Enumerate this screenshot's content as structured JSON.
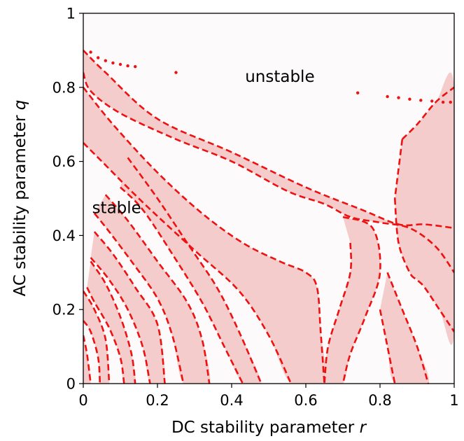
{
  "chart_data": {
    "type": "area",
    "title": "",
    "xlabel": "DC stability parameter r",
    "ylabel": "AC stability parameter q",
    "xlim": [
      0,
      1
    ],
    "ylim": [
      0,
      1
    ],
    "xticks": [
      0,
      0.2,
      0.4,
      0.6,
      0.8,
      1
    ],
    "xtick_labels": [
      "0",
      "0.2",
      "0.4",
      "0.6",
      "0.8",
      "1"
    ],
    "yticks": [
      0,
      0.2,
      0.4,
      0.6,
      0.8,
      1
    ],
    "ytick_labels": [
      "0",
      "0.2",
      "0.4",
      "0.6",
      "0.8",
      "1"
    ],
    "grid": false,
    "annotations": [
      {
        "text": "unstable",
        "x": 0.53,
        "y": 0.83
      },
      {
        "text": "stable",
        "x": 0.09,
        "y": 0.475
      }
    ],
    "colors": {
      "stable_region": "#f5cccc",
      "unstable_region": "#fcfafa",
      "boundary": "#ee1111"
    },
    "regions": [
      [
        [
          0,
          0.9
        ],
        [
          0.06,
          0.84
        ],
        [
          0.2,
          0.715
        ],
        [
          0.4,
          0.625
        ],
        [
          0.6,
          0.53
        ],
        [
          0.75,
          0.47
        ],
        [
          0.85,
          0.43
        ],
        [
          0.92,
          0.43
        ],
        [
          1,
          0.42
        ],
        [
          1,
          0.3
        ],
        [
          0.95,
          0.37
        ],
        [
          0.88,
          0.42
        ],
        [
          0.8,
          0.435
        ],
        [
          0.72,
          0.45
        ],
        [
          0.65,
          0.485
        ],
        [
          0.55,
          0.52
        ],
        [
          0.4,
          0.6
        ],
        [
          0.25,
          0.66
        ],
        [
          0.1,
          0.73
        ],
        [
          0.02,
          0.79
        ],
        [
          0,
          0.84
        ]
      ],
      [
        [
          0,
          0.8
        ],
        [
          0.08,
          0.7
        ],
        [
          0.2,
          0.57
        ],
        [
          0.32,
          0.46
        ],
        [
          0.43,
          0.38
        ],
        [
          0.53,
          0.33
        ],
        [
          0.6,
          0.3
        ],
        [
          0.63,
          0.26
        ],
        [
          0.64,
          0.14
        ],
        [
          0.65,
          0
        ],
        [
          0.56,
          0
        ],
        [
          0.5,
          0.13
        ],
        [
          0.42,
          0.25
        ],
        [
          0.3,
          0.36
        ],
        [
          0.16,
          0.49
        ],
        [
          0.05,
          0.6
        ],
        [
          0,
          0.65
        ]
      ],
      [
        [
          0.12,
          0.61
        ],
        [
          0.2,
          0.5
        ],
        [
          0.28,
          0.38
        ],
        [
          0.36,
          0.26
        ],
        [
          0.42,
          0.14
        ],
        [
          0.48,
          0
        ],
        [
          0.43,
          0
        ],
        [
          0.38,
          0.1
        ],
        [
          0.32,
          0.22
        ],
        [
          0.24,
          0.35
        ],
        [
          0.16,
          0.47
        ],
        [
          0.1,
          0.53
        ]
      ],
      [
        [
          0.06,
          0.51
        ],
        [
          0.12,
          0.44
        ],
        [
          0.2,
          0.33
        ],
        [
          0.28,
          0.22
        ],
        [
          0.32,
          0.12
        ],
        [
          0.34,
          0
        ],
        [
          0.27,
          0
        ],
        [
          0.24,
          0.13
        ],
        [
          0.2,
          0.23
        ],
        [
          0.13,
          0.33
        ],
        [
          0.07,
          0.41
        ],
        [
          0.03,
          0.46
        ]
      ],
      [
        [
          0.03,
          0.41
        ],
        [
          0.08,
          0.35
        ],
        [
          0.14,
          0.26
        ],
        [
          0.2,
          0.16
        ],
        [
          0.22,
          0
        ],
        [
          0.18,
          0
        ],
        [
          0.16,
          0.1
        ],
        [
          0.12,
          0.2
        ],
        [
          0.07,
          0.28
        ],
        [
          0.02,
          0.34
        ]
      ],
      [
        [
          0.02,
          0.33
        ],
        [
          0.06,
          0.27
        ],
        [
          0.1,
          0.18
        ],
        [
          0.13,
          0.08
        ],
        [
          0.14,
          0
        ],
        [
          0.11,
          0
        ],
        [
          0.1,
          0.07
        ],
        [
          0.07,
          0.15
        ],
        [
          0.03,
          0.22
        ],
        [
          0.01,
          0.26
        ]
      ],
      [
        [
          0,
          0.25
        ],
        [
          0.03,
          0.2
        ],
        [
          0.06,
          0.12
        ],
        [
          0.07,
          0
        ],
        [
          0.045,
          0
        ],
        [
          0.04,
          0.07
        ],
        [
          0.02,
          0.14
        ],
        [
          0,
          0.17
        ]
      ],
      [
        [
          0,
          0.13
        ],
        [
          0.01,
          0.08
        ],
        [
          0.02,
          0
        ],
        [
          0,
          0
        ]
      ],
      [
        [
          0.7,
          0.45
        ],
        [
          0.78,
          0.42
        ],
        [
          0.8,
          0.3
        ],
        [
          0.76,
          0.18
        ],
        [
          0.72,
          0.08
        ],
        [
          0.7,
          0
        ],
        [
          0.65,
          0
        ],
        [
          0.66,
          0.1
        ],
        [
          0.69,
          0.2
        ],
        [
          0.72,
          0.3
        ],
        [
          0.72,
          0.38
        ]
      ],
      [
        [
          0.86,
          0.66
        ],
        [
          0.9,
          0.7
        ],
        [
          0.95,
          0.76
        ],
        [
          1,
          0.8
        ],
        [
          1,
          0.14
        ],
        [
          0.96,
          0.2
        ],
        [
          0.92,
          0.26
        ],
        [
          0.9,
          0.28
        ],
        [
          0.88,
          0.3
        ],
        [
          0.85,
          0.38
        ],
        [
          0.84,
          0.5
        ]
      ],
      [
        [
          0.82,
          0.3
        ],
        [
          0.86,
          0.2
        ],
        [
          0.9,
          0.1
        ],
        [
          0.93,
          0
        ],
        [
          0.84,
          0
        ],
        [
          0.82,
          0.1
        ],
        [
          0.8,
          0.2
        ]
      ]
    ],
    "boundaries": [
      [
        [
          0,
          0.9
        ],
        [
          0.06,
          0.84
        ],
        [
          0.2,
          0.715
        ],
        [
          0.4,
          0.625
        ],
        [
          0.6,
          0.53
        ],
        [
          0.75,
          0.47
        ],
        [
          0.85,
          0.43
        ],
        [
          0.92,
          0.43
        ],
        [
          1,
          0.42
        ]
      ],
      [
        [
          0,
          0.84
        ],
        [
          0.02,
          0.79
        ],
        [
          0.1,
          0.73
        ],
        [
          0.25,
          0.66
        ],
        [
          0.4,
          0.6
        ],
        [
          0.55,
          0.52
        ],
        [
          0.65,
          0.485
        ],
        [
          0.72,
          0.45
        ],
        [
          0.8,
          0.435
        ],
        [
          0.88,
          0.42
        ],
        [
          0.95,
          0.37
        ],
        [
          1,
          0.3
        ]
      ],
      [
        [
          0,
          0.8
        ],
        [
          0.08,
          0.7
        ],
        [
          0.2,
          0.57
        ],
        [
          0.32,
          0.46
        ],
        [
          0.43,
          0.38
        ],
        [
          0.53,
          0.33
        ],
        [
          0.6,
          0.3
        ],
        [
          0.63,
          0.26
        ],
        [
          0.64,
          0.14
        ],
        [
          0.65,
          0
        ]
      ],
      [
        [
          0,
          0.65
        ],
        [
          0.05,
          0.6
        ],
        [
          0.16,
          0.49
        ],
        [
          0.3,
          0.36
        ],
        [
          0.42,
          0.25
        ],
        [
          0.5,
          0.13
        ],
        [
          0.56,
          0
        ]
      ],
      [
        [
          0.12,
          0.61
        ],
        [
          0.2,
          0.5
        ],
        [
          0.28,
          0.38
        ],
        [
          0.36,
          0.26
        ],
        [
          0.42,
          0.14
        ],
        [
          0.48,
          0
        ]
      ],
      [
        [
          0.1,
          0.53
        ],
        [
          0.16,
          0.47
        ],
        [
          0.24,
          0.35
        ],
        [
          0.32,
          0.22
        ],
        [
          0.38,
          0.1
        ],
        [
          0.43,
          0
        ]
      ],
      [
        [
          0.06,
          0.51
        ],
        [
          0.12,
          0.44
        ],
        [
          0.2,
          0.33
        ],
        [
          0.28,
          0.22
        ],
        [
          0.32,
          0.12
        ],
        [
          0.34,
          0
        ]
      ],
      [
        [
          0.03,
          0.46
        ],
        [
          0.07,
          0.41
        ],
        [
          0.13,
          0.33
        ],
        [
          0.2,
          0.23
        ],
        [
          0.24,
          0.13
        ],
        [
          0.27,
          0
        ]
      ],
      [
        [
          0.03,
          0.41
        ],
        [
          0.08,
          0.35
        ],
        [
          0.14,
          0.26
        ],
        [
          0.2,
          0.16
        ],
        [
          0.22,
          0
        ]
      ],
      [
        [
          0.02,
          0.34
        ],
        [
          0.07,
          0.28
        ],
        [
          0.12,
          0.2
        ],
        [
          0.16,
          0.1
        ],
        [
          0.18,
          0
        ]
      ],
      [
        [
          0.02,
          0.33
        ],
        [
          0.06,
          0.27
        ],
        [
          0.1,
          0.18
        ],
        [
          0.13,
          0.08
        ],
        [
          0.14,
          0
        ]
      ],
      [
        [
          0.01,
          0.26
        ],
        [
          0.03,
          0.22
        ],
        [
          0.07,
          0.15
        ],
        [
          0.1,
          0.07
        ],
        [
          0.11,
          0
        ]
      ],
      [
        [
          0,
          0.25
        ],
        [
          0.03,
          0.2
        ],
        [
          0.06,
          0.12
        ],
        [
          0.07,
          0
        ]
      ],
      [
        [
          0,
          0.17
        ],
        [
          0.02,
          0.14
        ],
        [
          0.04,
          0.07
        ],
        [
          0.045,
          0
        ]
      ],
      [
        [
          0,
          0.13
        ],
        [
          0.01,
          0.08
        ],
        [
          0.02,
          0
        ]
      ],
      [
        [
          0.7,
          0.45
        ],
        [
          0.78,
          0.42
        ],
        [
          0.8,
          0.3
        ],
        [
          0.76,
          0.18
        ],
        [
          0.72,
          0.08
        ],
        [
          0.7,
          0
        ]
      ],
      [
        [
          0.72,
          0.38
        ],
        [
          0.72,
          0.3
        ],
        [
          0.69,
          0.2
        ],
        [
          0.66,
          0.1
        ],
        [
          0.65,
          0
        ]
      ],
      [
        [
          0.84,
          0.5
        ],
        [
          0.85,
          0.38
        ],
        [
          0.88,
          0.3
        ],
        [
          0.9,
          0.28
        ],
        [
          0.92,
          0.26
        ],
        [
          0.96,
          0.2
        ],
        [
          1,
          0.14
        ]
      ],
      [
        [
          0.86,
          0.66
        ],
        [
          0.9,
          0.7
        ],
        [
          0.95,
          0.76
        ],
        [
          1,
          0.8
        ]
      ],
      [
        [
          0.86,
          0.66
        ],
        [
          0.84,
          0.5
        ]
      ],
      [
        [
          0.82,
          0.3
        ],
        [
          0.86,
          0.2
        ],
        [
          0.9,
          0.1
        ],
        [
          0.93,
          0
        ]
      ],
      [
        [
          0.8,
          0.2
        ],
        [
          0.82,
          0.1
        ],
        [
          0.84,
          0
        ]
      ]
    ],
    "scatter_points": [
      [
        0.02,
        0.895
      ],
      [
        0.04,
        0.88
      ],
      [
        0.06,
        0.872
      ],
      [
        0.08,
        0.866
      ],
      [
        0.1,
        0.862
      ],
      [
        0.12,
        0.858
      ],
      [
        0.14,
        0.856
      ],
      [
        0.25,
        0.84
      ],
      [
        0.74,
        0.785
      ],
      [
        0.82,
        0.775
      ],
      [
        0.85,
        0.772
      ],
      [
        0.88,
        0.768
      ],
      [
        0.91,
        0.765
      ],
      [
        0.94,
        0.763
      ],
      [
        0.97,
        0.76
      ],
      [
        0.99,
        0.76
      ]
    ]
  }
}
